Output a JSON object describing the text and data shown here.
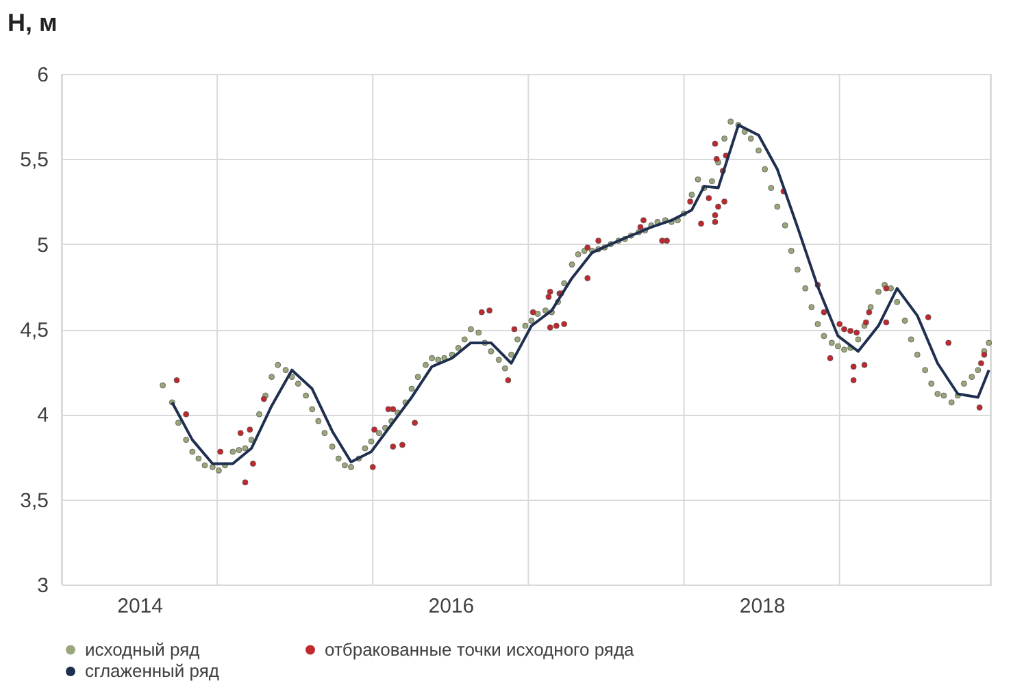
{
  "chart_data": {
    "type": "scatter",
    "ylabel": "Н, м",
    "xlim": [
      2013.5,
      2019.47
    ],
    "xticks": [
      {
        "value": 2013.5,
        "label": null
      },
      {
        "value": 2014,
        "label": "2014"
      },
      {
        "value": 2014.5,
        "label": null
      },
      {
        "value": 2015.5,
        "label": null
      },
      {
        "value": 2016,
        "label": "2016"
      },
      {
        "value": 2016.5,
        "label": null
      },
      {
        "value": 2017.5,
        "label": null
      },
      {
        "value": 2018,
        "label": "2018"
      },
      {
        "value": 2018.5,
        "label": null
      },
      {
        "value": 2019.47,
        "label": null
      }
    ],
    "ylim": [
      3,
      6
    ],
    "yticks": [
      3,
      {
        "value": 3.5,
        "label": "3,5"
      },
      4,
      {
        "value": 4.5,
        "label": "4,5"
      },
      5,
      {
        "value": 5.5,
        "label": "5,5"
      },
      6
    ],
    "grid": true,
    "legend": "bottom",
    "series": [
      {
        "name": "исходный ряд",
        "color": "#9aa77a",
        "x": [
          2014.15,
          2014.21,
          2014.25,
          2014.3,
          2014.34,
          2014.38,
          2014.42,
          2014.47,
          2014.51,
          2014.55,
          2014.6,
          2014.64,
          2014.68,
          2014.72,
          2014.77,
          2014.81,
          2014.85,
          2014.89,
          2014.94,
          2014.98,
          2015.02,
          2015.07,
          2015.11,
          2015.15,
          2015.19,
          2015.24,
          2015.28,
          2015.32,
          2015.36,
          2015.41,
          2015.45,
          2015.49,
          2015.54,
          2015.58,
          2015.62,
          2015.66,
          2015.71,
          2015.75,
          2015.79,
          2015.84,
          2015.88,
          2015.92,
          2015.96,
          2016.01,
          2016.05,
          2016.09,
          2016.13,
          2016.18,
          2016.22,
          2016.26,
          2016.31,
          2016.35,
          2016.39,
          2016.43,
          2016.48,
          2016.52,
          2016.56,
          2016.61,
          2016.65,
          2016.69,
          2016.73,
          2016.78,
          2016.82,
          2016.86,
          2016.91,
          2016.95,
          2016.99,
          2017.03,
          2017.08,
          2017.12,
          2017.16,
          2017.21,
          2017.25,
          2017.29,
          2017.33,
          2017.38,
          2017.42,
          2017.46,
          2017.5,
          2017.55,
          2017.59,
          2017.63,
          2017.68,
          2017.72,
          2017.76,
          2017.8,
          2017.85,
          2017.89,
          2017.93,
          2017.98,
          2018.02,
          2018.06,
          2018.1,
          2018.15,
          2018.19,
          2018.23,
          2018.28,
          2018.32,
          2018.36,
          2018.4,
          2018.45,
          2018.49,
          2018.53,
          2018.57,
          2018.62,
          2018.66,
          2018.7,
          2018.75,
          2018.79,
          2018.83,
          2018.87,
          2018.92,
          2018.96,
          2019.0,
          2019.05,
          2019.09,
          2019.13,
          2019.17,
          2019.22,
          2019.26,
          2019.3,
          2019.35,
          2019.39,
          2019.43,
          2019.46
        ],
        "values": [
          4.17,
          4.07,
          3.95,
          3.85,
          3.78,
          3.74,
          3.7,
          3.69,
          3.67,
          3.7,
          3.78,
          3.79,
          3.8,
          3.85,
          4.0,
          4.11,
          4.22,
          4.29,
          4.26,
          4.22,
          4.18,
          4.11,
          4.03,
          3.96,
          3.89,
          3.81,
          3.74,
          3.7,
          3.69,
          3.74,
          3.8,
          3.84,
          3.89,
          3.92,
          3.96,
          4.01,
          4.07,
          4.15,
          4.22,
          4.29,
          4.33,
          4.32,
          4.33,
          4.35,
          4.39,
          4.44,
          4.5,
          4.48,
          4.42,
          4.37,
          4.32,
          4.27,
          4.35,
          4.44,
          4.52,
          4.55,
          4.59,
          4.61,
          4.6,
          4.66,
          4.77,
          4.88,
          4.94,
          4.96,
          4.96,
          4.97,
          4.98,
          5.0,
          5.02,
          5.03,
          5.05,
          5.07,
          5.08,
          5.11,
          5.13,
          5.14,
          5.13,
          5.14,
          5.18,
          5.29,
          5.38,
          5.33,
          5.37,
          5.48,
          5.62,
          5.72,
          5.7,
          5.66,
          5.62,
          5.55,
          5.44,
          5.33,
          5.22,
          5.11,
          4.96,
          4.85,
          4.74,
          4.63,
          4.53,
          4.46,
          4.42,
          4.4,
          4.38,
          4.39,
          4.44,
          4.52,
          4.63,
          4.72,
          4.76,
          4.74,
          4.66,
          4.55,
          4.44,
          4.35,
          4.26,
          4.18,
          4.12,
          4.11,
          4.07,
          4.11,
          4.18,
          4.22,
          4.26,
          4.37,
          4.42
        ]
      },
      {
        "name": "отбракованные точки исходного ряда",
        "color": "#c0282d",
        "x": [
          2014.24,
          2014.3,
          2014.52,
          2014.65,
          2014.68,
          2014.71,
          2014.73,
          2014.8,
          2015.5,
          2015.51,
          2015.6,
          2015.63,
          2015.63,
          2015.69,
          2015.77,
          2016.2,
          2016.25,
          2016.37,
          2016.41,
          2016.53,
          2016.63,
          2016.64,
          2016.64,
          2016.68,
          2016.7,
          2016.71,
          2016.73,
          2016.88,
          2016.88,
          2016.95,
          2017.22,
          2017.24,
          2017.36,
          2017.39,
          2017.54,
          2017.61,
          2017.66,
          2017.7,
          2017.7,
          2017.7,
          2017.71,
          2017.72,
          2017.75,
          2017.76,
          2017.77,
          2018.14,
          2018.36,
          2018.4,
          2018.44,
          2018.5,
          2018.53,
          2018.57,
          2018.59,
          2018.59,
          2018.61,
          2018.66,
          2018.67,
          2018.69,
          2018.8,
          2018.8,
          2019.07,
          2019.2,
          2019.4,
          2019.41,
          2019.43
        ],
        "values": [
          4.2,
          4.0,
          3.78,
          3.89,
          3.6,
          3.91,
          3.71,
          4.09,
          3.69,
          3.91,
          4.03,
          4.03,
          3.81,
          3.82,
          3.95,
          4.6,
          4.61,
          4.2,
          4.5,
          4.6,
          4.69,
          4.72,
          4.51,
          4.52,
          4.71,
          4.71,
          4.53,
          4.98,
          4.8,
          5.02,
          5.1,
          5.14,
          5.02,
          5.02,
          5.25,
          5.12,
          5.27,
          5.59,
          5.17,
          5.13,
          5.5,
          5.22,
          5.43,
          5.25,
          5.52,
          5.31,
          4.76,
          4.6,
          4.33,
          4.53,
          4.5,
          4.49,
          4.28,
          4.2,
          4.48,
          4.29,
          4.54,
          4.6,
          4.74,
          4.54,
          4.57,
          4.42,
          4.04,
          4.3,
          4.35
        ]
      },
      {
        "name": "сглаженный ряд",
        "type": "line",
        "line_style": "solid",
        "color": "#1f2f4f",
        "x": [
          2014.21,
          2014.34,
          2014.47,
          2014.6,
          2014.72,
          2014.85,
          2014.98,
          2015.11,
          2015.24,
          2015.36,
          2015.49,
          2015.62,
          2015.75,
          2015.88,
          2016.01,
          2016.13,
          2016.26,
          2016.39,
          2016.52,
          2016.65,
          2016.78,
          2016.91,
          2017.03,
          2017.16,
          2017.29,
          2017.42,
          2017.55,
          2017.63,
          2017.72,
          2017.85,
          2017.98,
          2018.1,
          2018.23,
          2018.36,
          2018.49,
          2018.62,
          2018.75,
          2018.87,
          2019.0,
          2019.13,
          2019.26,
          2019.39,
          2019.46
        ],
        "values": [
          4.07,
          3.85,
          3.71,
          3.71,
          3.8,
          4.05,
          4.26,
          4.15,
          3.9,
          3.72,
          3.78,
          3.94,
          4.1,
          4.28,
          4.33,
          4.42,
          4.42,
          4.3,
          4.52,
          4.61,
          4.8,
          4.95,
          5.0,
          5.05,
          5.1,
          5.14,
          5.2,
          5.34,
          5.33,
          5.7,
          5.64,
          5.44,
          5.1,
          4.75,
          4.46,
          4.37,
          4.52,
          4.74,
          4.58,
          4.3,
          4.12,
          4.1,
          4.26
        ]
      }
    ]
  }
}
